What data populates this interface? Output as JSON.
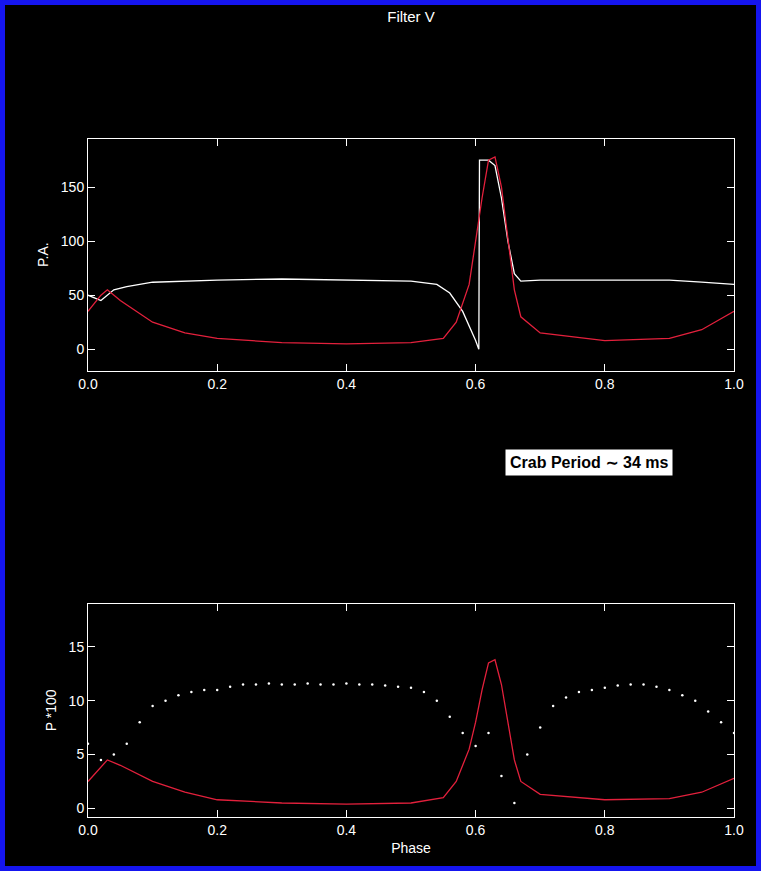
{
  "chart_data": [
    {
      "type": "line",
      "title": "Filter V",
      "y_label": "P.A.",
      "xlim": [
        0,
        1
      ],
      "xticks": [
        {
          "value": 0,
          "label": "0.0"
        },
        0.2,
        0.4,
        0.6,
        0.8,
        {
          "value": 1,
          "label": "1.0"
        }
      ],
      "ylim": [
        -20,
        195
      ],
      "yticks": [
        0,
        50,
        100,
        150
      ],
      "grid": false,
      "annotations": [
        "Crab Period ∼ 34 ms"
      ],
      "series": [
        {
          "type": "line",
          "color": "#ffffff",
          "x": [
            0,
            0.02,
            0.04,
            0.06,
            0.1,
            0.2,
            0.3,
            0.4,
            0.5,
            0.54,
            0.56,
            0.58,
            0.59,
            0.6,
            0.605,
            0.606,
            0.62,
            0.63,
            0.64,
            0.65,
            0.66,
            0.67,
            0.7,
            0.8,
            0.9,
            0.95,
            1
          ],
          "values": [
            50,
            45,
            55,
            58,
            62,
            64,
            65,
            64,
            63,
            60,
            52,
            35,
            22,
            8,
            0,
            175,
            175,
            170,
            140,
            100,
            70,
            63,
            64,
            64,
            64,
            62,
            60
          ]
        },
        {
          "type": "line",
          "color": "#e3203c",
          "x": [
            0,
            0.02,
            0.03,
            0.05,
            0.1,
            0.15,
            0.2,
            0.3,
            0.4,
            0.5,
            0.55,
            0.57,
            0.59,
            0.6,
            0.61,
            0.62,
            0.63,
            0.64,
            0.65,
            0.66,
            0.67,
            0.7,
            0.8,
            0.9,
            0.95,
            1
          ],
          "values": [
            35,
            50,
            55,
            45,
            25,
            15,
            10,
            6,
            5,
            6,
            10,
            25,
            60,
            100,
            140,
            175,
            178,
            150,
            100,
            55,
            30,
            15,
            8,
            10,
            18,
            35
          ]
        }
      ]
    },
    {
      "type": "line",
      "x_label": "Phase",
      "y_label": "P *100",
      "xlim": [
        0,
        1
      ],
      "xticks": [
        {
          "value": 0,
          "label": "0.0"
        },
        0.2,
        0.4,
        0.6,
        0.8,
        {
          "value": 1,
          "label": "1.0"
        }
      ],
      "ylim": [
        -0.8,
        19
      ],
      "yticks": [
        0,
        5,
        10,
        15
      ],
      "grid": false,
      "series": [
        {
          "type": "scatter",
          "marker": "dot",
          "color": "#ffffff",
          "x": [
            0,
            0.02,
            0.04,
            0.06,
            0.08,
            0.1,
            0.12,
            0.14,
            0.16,
            0.18,
            0.2,
            0.22,
            0.24,
            0.26,
            0.28,
            0.3,
            0.32,
            0.34,
            0.36,
            0.38,
            0.4,
            0.42,
            0.44,
            0.46,
            0.48,
            0.5,
            0.52,
            0.54,
            0.56,
            0.58,
            0.6,
            0.62,
            0.64,
            0.66,
            0.68,
            0.7,
            0.72,
            0.74,
            0.76,
            0.78,
            0.8,
            0.82,
            0.84,
            0.86,
            0.88,
            0.9,
            0.92,
            0.94,
            0.96,
            0.98,
            1
          ],
          "values": [
            6,
            4.5,
            5,
            6,
            8,
            9.5,
            10,
            10.5,
            10.8,
            11,
            11,
            11.3,
            11.5,
            11.5,
            11.6,
            11.5,
            11.5,
            11.6,
            11.5,
            11.5,
            11.6,
            11.5,
            11.5,
            11.4,
            11.3,
            11.2,
            10.8,
            10,
            8.5,
            7,
            5.8,
            7,
            3,
            0.5,
            5,
            7.5,
            9.5,
            10.3,
            10.8,
            11,
            11.2,
            11.4,
            11.5,
            11.5,
            11.3,
            11,
            10.5,
            10,
            9,
            8,
            7
          ]
        },
        {
          "type": "line",
          "color": "#e3203c",
          "x": [
            0,
            0.03,
            0.05,
            0.1,
            0.15,
            0.2,
            0.3,
            0.4,
            0.5,
            0.55,
            0.57,
            0.59,
            0.6,
            0.61,
            0.62,
            0.63,
            0.64,
            0.65,
            0.66,
            0.67,
            0.7,
            0.8,
            0.9,
            0.95,
            1
          ],
          "values": [
            2.5,
            4.5,
            4,
            2.5,
            1.5,
            0.8,
            0.5,
            0.4,
            0.5,
            1,
            2.5,
            5.5,
            8,
            11,
            13.5,
            13.8,
            11.5,
            8,
            4.5,
            2.5,
            1.3,
            0.8,
            0.9,
            1.5,
            2.8
          ]
        }
      ]
    }
  ]
}
